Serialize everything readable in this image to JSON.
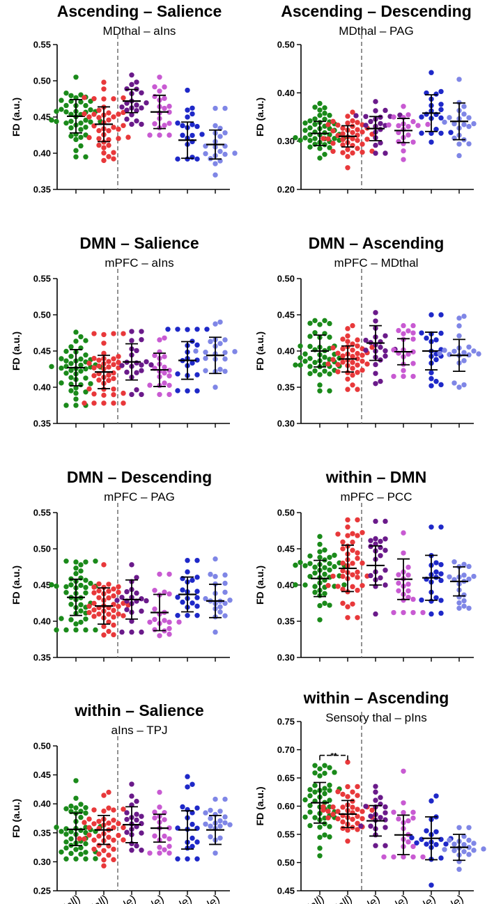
{
  "colors": {
    "HC (all)": "#1a8a1a",
    "NP (all)": "#e8383a",
    "HC (female)": "#6a1a8a",
    "NP (female)": "#c85ad2",
    "HC (male)": "#1e28c8",
    "NP (male)": "#7f86e6"
  },
  "groups": [
    "HC (all)",
    "NP (all)",
    "HC (female)",
    "NP (female)",
    "HC (male)",
    "NP (male)"
  ],
  "chart_data": [
    {
      "type": "scatter",
      "title": "Ascending – Salience",
      "subtitle": "MDthal – aIns",
      "ylabel": "FD (a.u.)",
      "ylim": [
        0.35,
        0.55
      ],
      "yticks": [
        "0.35",
        "0.40",
        "0.45",
        "0.50",
        "0.55"
      ],
      "categories": [
        "HC (all)",
        "NP (all)",
        "HC (female)",
        "NP (female)",
        "HC (male)",
        "NP (male)"
      ],
      "means": [
        0.451,
        0.44,
        0.472,
        0.457,
        0.418,
        0.412
      ],
      "sd": [
        0.023,
        0.024,
        0.016,
        0.023,
        0.025,
        0.02
      ],
      "n": [
        45,
        42,
        21,
        20,
        20,
        20
      ],
      "ranges": [
        [
          0.395,
          0.505
        ],
        [
          0.39,
          0.498
        ],
        [
          0.44,
          0.508
        ],
        [
          0.425,
          0.505
        ],
        [
          0.392,
          0.487
        ],
        [
          0.37,
          0.462
        ]
      ]
    },
    {
      "type": "scatter",
      "title": "Ascending – Descending",
      "subtitle": "MDthal – PAG",
      "ylabel": "FD (a.u.)",
      "ylim": [
        0.2,
        0.5
      ],
      "yticks": [
        "0.20",
        "0.30",
        "0.40",
        "0.50"
      ],
      "categories": [
        "HC (all)",
        "NP (all)",
        "HC (female)",
        "NP (female)",
        "HC (male)",
        "NP (male)"
      ],
      "means": [
        0.316,
        0.31,
        0.326,
        0.322,
        0.358,
        0.341
      ],
      "sd": [
        0.025,
        0.022,
        0.025,
        0.025,
        0.038,
        0.038
      ],
      "n": [
        45,
        42,
        21,
        20,
        20,
        20
      ],
      "ranges": [
        [
          0.265,
          0.378
        ],
        [
          0.245,
          0.36
        ],
        [
          0.275,
          0.382
        ],
        [
          0.262,
          0.372
        ],
        [
          0.298,
          0.442
        ],
        [
          0.27,
          0.428
        ]
      ]
    },
    {
      "type": "scatter",
      "title": "DMN – Salience",
      "subtitle": "mPFC – aIns",
      "ylabel": "FD (a.u.)",
      "ylim": [
        0.35,
        0.55
      ],
      "yticks": [
        "0.35",
        "0.40",
        "0.45",
        "0.50",
        "0.55"
      ],
      "categories": [
        "HC (all)",
        "NP (all)",
        "HC (female)",
        "NP (female)",
        "HC (male)",
        "NP (male)"
      ],
      "means": [
        0.427,
        0.421,
        0.435,
        0.424,
        0.437,
        0.444
      ],
      "sd": [
        0.025,
        0.023,
        0.025,
        0.023,
        0.026,
        0.025
      ],
      "n": [
        45,
        42,
        21,
        20,
        20,
        20
      ],
      "ranges": [
        [
          0.375,
          0.476
        ],
        [
          0.378,
          0.474
        ],
        [
          0.39,
          0.477
        ],
        [
          0.39,
          0.468
        ],
        [
          0.395,
          0.48
        ],
        [
          0.4,
          0.49
        ]
      ]
    },
    {
      "type": "scatter",
      "title": "DMN – Ascending",
      "subtitle": "mPFC – MDthal",
      "ylabel": "FD (a.u.)",
      "ylim": [
        0.3,
        0.5
      ],
      "yticks": [
        "0.30",
        "0.35",
        "0.40",
        "0.45",
        "0.50"
      ],
      "categories": [
        "HC (all)",
        "NP (all)",
        "HC (female)",
        "NP (female)",
        "HC (male)",
        "NP (male)"
      ],
      "means": [
        0.4,
        0.389,
        0.411,
        0.399,
        0.4,
        0.394
      ],
      "sd": [
        0.022,
        0.018,
        0.024,
        0.018,
        0.026,
        0.022
      ],
      "n": [
        45,
        42,
        21,
        20,
        20,
        20
      ],
      "ranges": [
        [
          0.345,
          0.442
        ],
        [
          0.347,
          0.435
        ],
        [
          0.355,
          0.453
        ],
        [
          0.365,
          0.435
        ],
        [
          0.352,
          0.45
        ],
        [
          0.35,
          0.448
        ]
      ]
    },
    {
      "type": "scatter",
      "title": "DMN – Descending",
      "subtitle": "mPFC – PAG",
      "ylabel": "FD (a.u.)",
      "ylim": [
        0.35,
        0.55
      ],
      "yticks": [
        "0.35",
        "0.40",
        "0.45",
        "0.50",
        "0.55"
      ],
      "categories": [
        "HC (all)",
        "NP (all)",
        "HC (female)",
        "NP (female)",
        "HC (male)",
        "NP (male)"
      ],
      "means": [
        0.433,
        0.421,
        0.43,
        0.412,
        0.437,
        0.428
      ],
      "sd": [
        0.025,
        0.025,
        0.027,
        0.025,
        0.024,
        0.023
      ],
      "n": [
        45,
        42,
        21,
        20,
        20,
        20
      ],
      "ranges": [
        [
          0.388,
          0.483
        ],
        [
          0.381,
          0.478
        ],
        [
          0.385,
          0.478
        ],
        [
          0.38,
          0.465
        ],
        [
          0.408,
          0.484
        ],
        [
          0.385,
          0.486
        ]
      ]
    },
    {
      "type": "scatter",
      "title": "within – DMN",
      "subtitle": "mPFC – PCC",
      "ylabel": "FD (a.u.)",
      "ylim": [
        0.3,
        0.5
      ],
      "yticks": [
        "0.30",
        "0.35",
        "0.40",
        "0.45",
        "0.50"
      ],
      "categories": [
        "HC (all)",
        "NP (all)",
        "HC (female)",
        "NP (female)",
        "HC (male)",
        "NP (male)"
      ],
      "means": [
        0.409,
        0.423,
        0.427,
        0.408,
        0.41,
        0.405
      ],
      "sd": [
        0.025,
        0.032,
        0.027,
        0.028,
        0.031,
        0.02
      ],
      "n": [
        45,
        42,
        21,
        20,
        20,
        20
      ],
      "ranges": [
        [
          0.352,
          0.467
        ],
        [
          0.355,
          0.49
        ],
        [
          0.36,
          0.488
        ],
        [
          0.362,
          0.472
        ],
        [
          0.36,
          0.48
        ],
        [
          0.368,
          0.432
        ]
      ]
    },
    {
      "type": "scatter",
      "title": "within – Salience",
      "subtitle": "aIns – TPJ",
      "ylabel": "FD (a.u.)",
      "ylim": [
        0.25,
        0.5
      ],
      "yticks": [
        "0.25",
        "0.30",
        "0.35",
        "0.40",
        "0.45",
        "0.50"
      ],
      "categories": [
        "HC (all)",
        "NP (all)",
        "HC (female)",
        "NP (female)",
        "HC (male)",
        "NP (male)"
      ],
      "means": [
        0.356,
        0.355,
        0.364,
        0.358,
        0.355,
        0.355
      ],
      "sd": [
        0.028,
        0.025,
        0.031,
        0.024,
        0.033,
        0.025
      ],
      "n": [
        45,
        42,
        21,
        20,
        20,
        20
      ],
      "ranges": [
        [
          0.305,
          0.44
        ],
        [
          0.293,
          0.42
        ],
        [
          0.32,
          0.434
        ],
        [
          0.315,
          0.42
        ],
        [
          0.305,
          0.447
        ],
        [
          0.315,
          0.408
        ]
      ]
    },
    {
      "type": "scatter",
      "title": "within – Ascending",
      "subtitle": "Sensory thal – pIns",
      "ylabel": "FD (a.u.)",
      "ylim": [
        0.45,
        0.75
      ],
      "yticks": [
        "0.45",
        "0.50",
        "0.55",
        "0.60",
        "0.65",
        "0.70",
        "0.75"
      ],
      "categories": [
        "HC (all)",
        "NP (all)",
        "HC (female)",
        "NP (female)",
        "HC (male)",
        "NP (male)"
      ],
      "means": [
        0.606,
        0.586,
        0.574,
        0.549,
        0.543,
        0.527
      ],
      "sd": [
        0.036,
        0.024,
        0.027,
        0.035,
        0.038,
        0.023
      ],
      "n": [
        45,
        42,
        21,
        20,
        20,
        20
      ],
      "ranges": [
        [
          0.512,
          0.672
        ],
        [
          0.538,
          0.678
        ],
        [
          0.53,
          0.635
        ],
        [
          0.51,
          0.662
        ],
        [
          0.46,
          0.618
        ],
        [
          0.488,
          0.562
        ]
      ],
      "significance": {
        "label": "**",
        "between": [
          "HC (all)",
          "NP (all)"
        ],
        "y": 0.69
      }
    }
  ]
}
